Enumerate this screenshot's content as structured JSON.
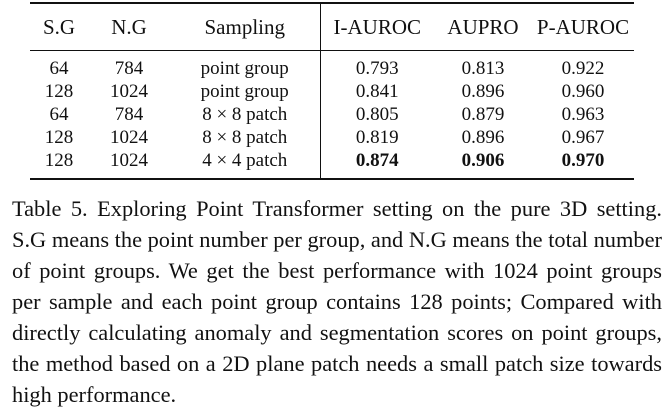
{
  "table": {
    "headers": {
      "sg": "S.G",
      "ng": "N.G",
      "sampling": "Sampling",
      "iauroc": "I-AUROC",
      "aupro": "AUPRO",
      "pauroc": "P-AUROC"
    },
    "rows": [
      {
        "sg": "64",
        "ng": "784",
        "sampling": "point group",
        "iauroc": "0.793",
        "aupro": "0.813",
        "pauroc": "0.922"
      },
      {
        "sg": "128",
        "ng": "1024",
        "sampling": "point group",
        "iauroc": "0.841",
        "aupro": "0.896",
        "pauroc": "0.960"
      },
      {
        "sg": "64",
        "ng": "784",
        "sampling": "8 × 8 patch",
        "iauroc": "0.805",
        "aupro": "0.879",
        "pauroc": "0.963"
      },
      {
        "sg": "128",
        "ng": "1024",
        "sampling": "8 × 8 patch",
        "iauroc": "0.819",
        "aupro": "0.896",
        "pauroc": "0.967"
      },
      {
        "sg": "128",
        "ng": "1024",
        "sampling": "4 × 4 patch",
        "iauroc": "0.874",
        "aupro": "0.906",
        "pauroc": "0.970"
      }
    ]
  },
  "caption": {
    "label": "Table 5.",
    "text": "Exploring Point Transformer setting on the pure 3D setting. S.G means the point number per group, and N.G means the total number of point groups. We get the best performance with 1024 point groups per sample and each point group contains 128 points; Compared with directly calculating anomaly and segmentation scores on point groups, the method based on a 2D plane patch needs a small patch size towards high performance."
  }
}
